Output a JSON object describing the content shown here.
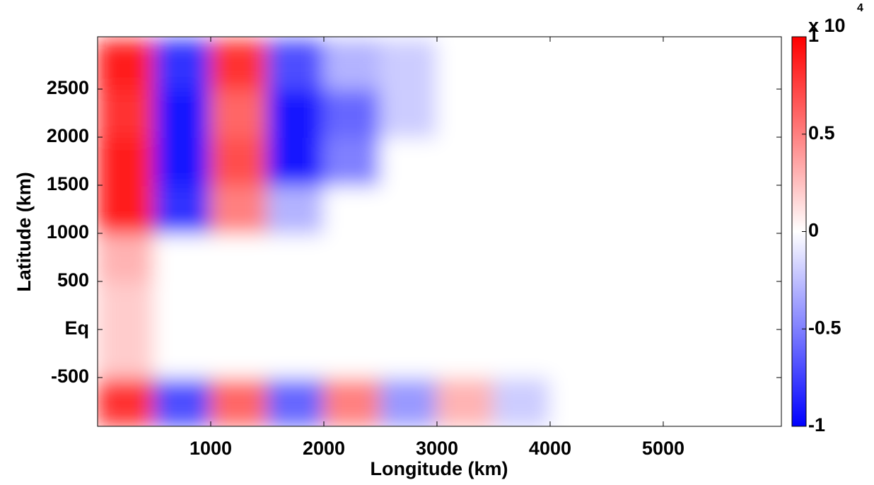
{
  "chart_data": {
    "type": "heatmap",
    "xlabel": "Longitude (km)",
    "ylabel": "Latitude (km)",
    "x": [
      250,
      750,
      1250,
      1750,
      2250,
      2750,
      3250,
      3750,
      4250,
      4750,
      5250,
      5750
    ],
    "y": [
      -750,
      -250,
      250,
      750,
      1250,
      1750,
      2250,
      2750
    ],
    "z": [
      [
        0.8,
        -0.7,
        0.6,
        -0.6,
        0.5,
        -0.4,
        0.3,
        -0.2,
        0,
        0,
        0,
        0
      ],
      [
        0.2,
        0,
        0,
        0,
        0,
        0,
        0,
        0,
        0,
        0,
        0,
        0
      ],
      [
        0.2,
        0,
        0,
        0,
        0,
        0,
        0,
        0,
        0,
        0,
        0,
        0
      ],
      [
        0.3,
        0,
        0,
        0,
        0,
        0,
        0,
        0,
        0,
        0,
        0,
        0
      ],
      [
        0.9,
        -0.8,
        0.5,
        -0.3,
        0,
        0,
        0,
        0,
        0,
        0,
        0,
        0
      ],
      [
        0.9,
        -0.9,
        0.7,
        -0.9,
        -0.5,
        0,
        0,
        0,
        0,
        0,
        0,
        0
      ],
      [
        0.8,
        -0.9,
        0.6,
        -0.9,
        -0.6,
        -0.2,
        0,
        0,
        0,
        0,
        0,
        0
      ],
      [
        0.9,
        -0.8,
        0.8,
        -0.7,
        -0.3,
        -0.2,
        0,
        0,
        0,
        0,
        0,
        0
      ]
    ],
    "xlim": [
      0,
      6044
    ],
    "xticks": [
      1000,
      2000,
      3000,
      4000,
      5000
    ],
    "ylim": [
      -1007,
      3044
    ],
    "yticks": [
      -500,
      {
        "value": 0,
        "label": "Eq"
      },
      500,
      1000,
      1500,
      2000,
      2500
    ],
    "colormap": [
      "#0000ff",
      "#ffffff",
      "#ff0000"
    ],
    "clim": [
      -1,
      1
    ],
    "cticks": [
      -1,
      -0.5,
      0,
      0.5,
      1
    ],
    "colorbar_multiplier": "x 10",
    "colorbar_exponent": "4"
  }
}
